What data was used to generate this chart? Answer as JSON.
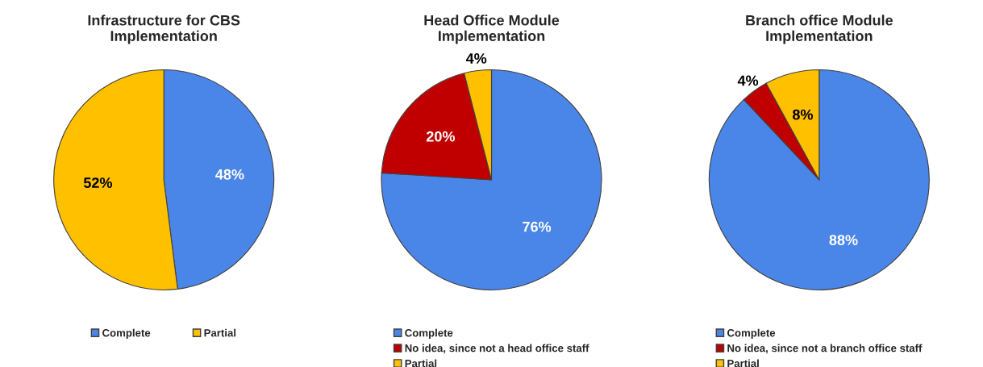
{
  "chart_data": [
    {
      "type": "pie",
      "title": "Infrastructure for CBS\nImplementation",
      "categories": [
        "Complete",
        "Partial"
      ],
      "values": [
        48,
        52
      ],
      "value_labels": [
        "48%",
        "52%"
      ],
      "colors": [
        "#4a86e8",
        "#ffc000"
      ],
      "legend": "bottom"
    },
    {
      "type": "pie",
      "title": "Head Office Module\nImplementation",
      "categories": [
        "Complete",
        "No idea, since not a head office staff",
        "Partial"
      ],
      "values": [
        76,
        20,
        4
      ],
      "value_labels": [
        "76%",
        "20%",
        "4%"
      ],
      "colors": [
        "#4a86e8",
        "#c00000",
        "#ffc000"
      ],
      "legend": "bottom"
    },
    {
      "type": "pie",
      "title": "Branch office Module\nImplementation",
      "categories": [
        "Complete",
        "No idea, since not a branch office staff",
        "Partial"
      ],
      "values": [
        88,
        4,
        8
      ],
      "value_labels": [
        "88%",
        "4%",
        "8%"
      ],
      "colors": [
        "#4a86e8",
        "#c00000",
        "#ffc000"
      ],
      "legend": "bottom"
    }
  ]
}
